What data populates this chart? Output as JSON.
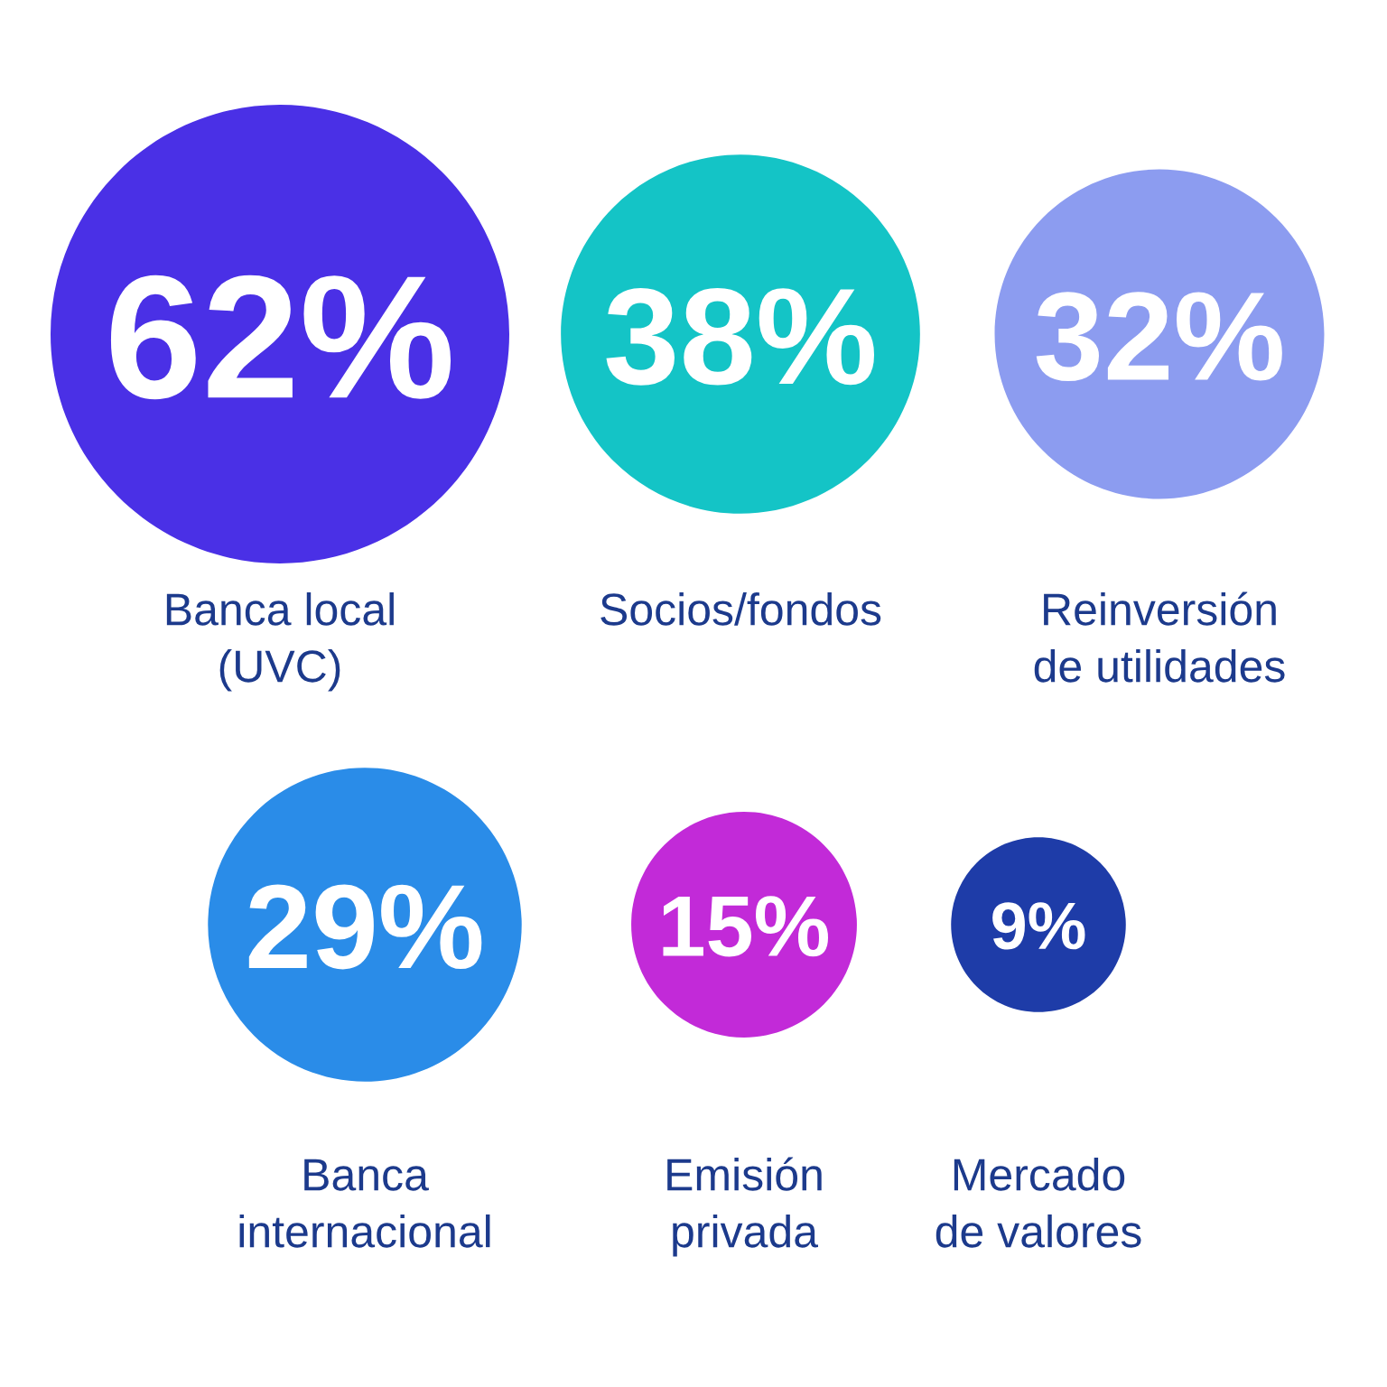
{
  "chart_data": {
    "type": "other",
    "categories": [
      "Banca local\n(UVC)",
      "Socios/fondos",
      "Reinversión\nde utilidades",
      "Banca\ninternacional",
      "Emisión\nprivada",
      "Mercado\nde valores"
    ],
    "values": [
      62,
      38,
      32,
      29,
      15,
      9
    ],
    "value_labels": [
      "62%",
      "38%",
      "32%",
      "29%",
      "15%",
      "9%"
    ],
    "colors": [
      "#4a30e6",
      "#14c4c6",
      "#8c9cf0",
      "#2a8ce8",
      "#c22ad8",
      "#1e3ca8"
    ]
  }
}
